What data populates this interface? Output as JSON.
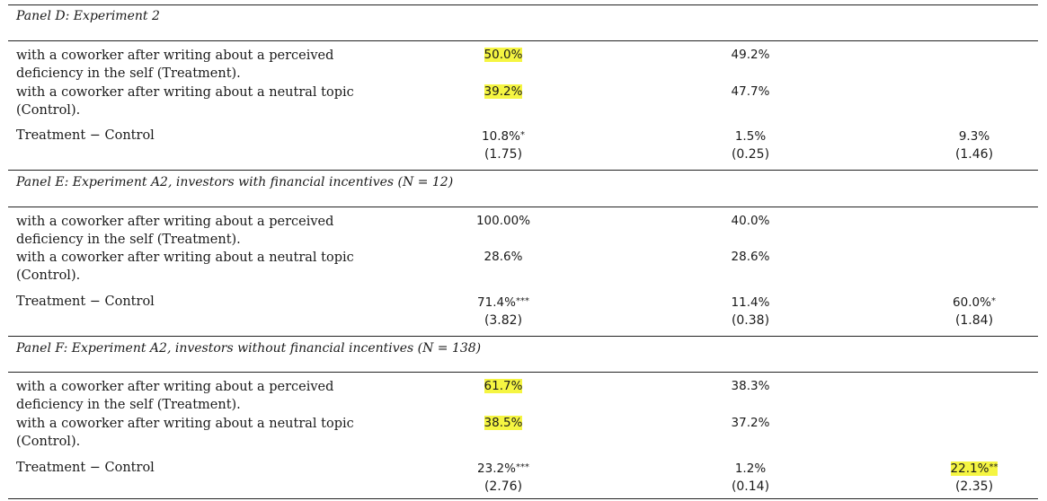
{
  "panels": [
    {
      "title": "Panel D: Experiment 2",
      "rows": [
        {
          "desc": "with a coworker after writing about a perceived deficiency in the self (Treatment).",
          "c1": "50.0%",
          "c2": "49.2%"
        },
        {
          "desc": "with a coworker after writing about a neutral topic (Control).",
          "c1": "39.2%",
          "c2": "47.7%"
        }
      ],
      "diff": {
        "label": "Treatment − Control",
        "c1": "10.8%",
        "c1_stars": "*",
        "c1_t": "(1.75)",
        "c2": "1.5%",
        "c2_stars": "",
        "c2_t": "(0.25)",
        "c3": "9.3%",
        "c3_stars": "",
        "c3_t": "(1.46)"
      }
    },
    {
      "title": "Panel E: Experiment A2, investors with financial incentives (N = 12)",
      "rows": [
        {
          "desc": "with a coworker after writing about a perceived deficiency in the self (Treatment).",
          "c1": "100.00%",
          "c2": "40.0%"
        },
        {
          "desc": "with a coworker after writing about a neutral topic (Control).",
          "c1": "28.6%",
          "c2": "28.6%"
        }
      ],
      "diff": {
        "label": "Treatment − Control",
        "c1": "71.4%",
        "c1_stars": "***",
        "c1_t": "(3.82)",
        "c2": "11.4%",
        "c2_stars": "",
        "c2_t": "(0.38)",
        "c3": "60.0%",
        "c3_stars": "*",
        "c3_t": "(1.84)"
      }
    },
    {
      "title": "Panel F: Experiment A2, investors without financial incentives (N = 138)",
      "rows": [
        {
          "desc": "with a coworker after writing about a perceived deficiency in the self (Treatment).",
          "c1": "61.7%",
          "c2": "38.3%"
        },
        {
          "desc": "with a coworker after writing about a neutral topic (Control).",
          "c1": "38.5%",
          "c2": "37.2%"
        }
      ],
      "diff": {
        "label": "Treatment − Control",
        "c1": "23.2%",
        "c1_stars": "***",
        "c1_t": "(2.76)",
        "c2": "1.2%",
        "c2_stars": "",
        "c2_t": "(0.14)",
        "c3": "22.1%",
        "c3_stars": "**",
        "c3_t": "(2.35)"
      }
    }
  ],
  "highlight_color": "#f5f542"
}
